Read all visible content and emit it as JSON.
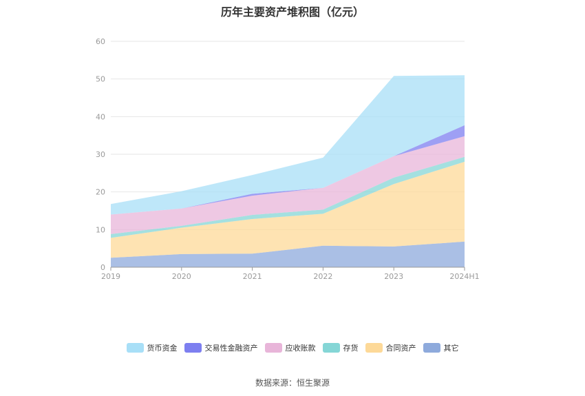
{
  "chart_data": {
    "type": "area",
    "stacked": true,
    "title": "历年主要资产堆积图（亿元）",
    "categories": [
      "2019",
      "2020",
      "2021",
      "2022",
      "2023",
      "2024H1"
    ],
    "ylim": [
      0,
      60
    ],
    "yticks": [
      0,
      10,
      20,
      30,
      40,
      50,
      60
    ],
    "grid": true,
    "legend_position": "bottom",
    "series": [
      {
        "name": "其它",
        "color": "#8eaadc",
        "values": [
          2.5,
          3.5,
          3.6,
          5.7,
          5.5,
          6.8
        ]
      },
      {
        "name": "合同资产",
        "color": "#fdd998",
        "values": [
          5.3,
          7.0,
          9.2,
          8.5,
          16.6,
          21.2
        ]
      },
      {
        "name": "存货",
        "color": "#85d6d6",
        "values": [
          1.0,
          0.5,
          1.1,
          1.1,
          1.7,
          1.3
        ]
      },
      {
        "name": "应收账款",
        "color": "#e8b5d9",
        "values": [
          5.2,
          4.6,
          5.1,
          5.8,
          5.7,
          5.5
        ]
      },
      {
        "name": "交易性金融资产",
        "color": "#7d7ff0",
        "values": [
          0.0,
          0.0,
          0.5,
          0.0,
          0.0,
          2.9
        ]
      },
      {
        "name": "货币资金",
        "color": "#a8dff7",
        "values": [
          2.8,
          4.6,
          5.0,
          8.0,
          21.3,
          13.3
        ]
      }
    ],
    "legend_order": [
      "货币资金",
      "交易性金融资产",
      "应收账款",
      "存货",
      "合同资产",
      "其它"
    ]
  },
  "source_note": "数据来源：恒生聚源"
}
